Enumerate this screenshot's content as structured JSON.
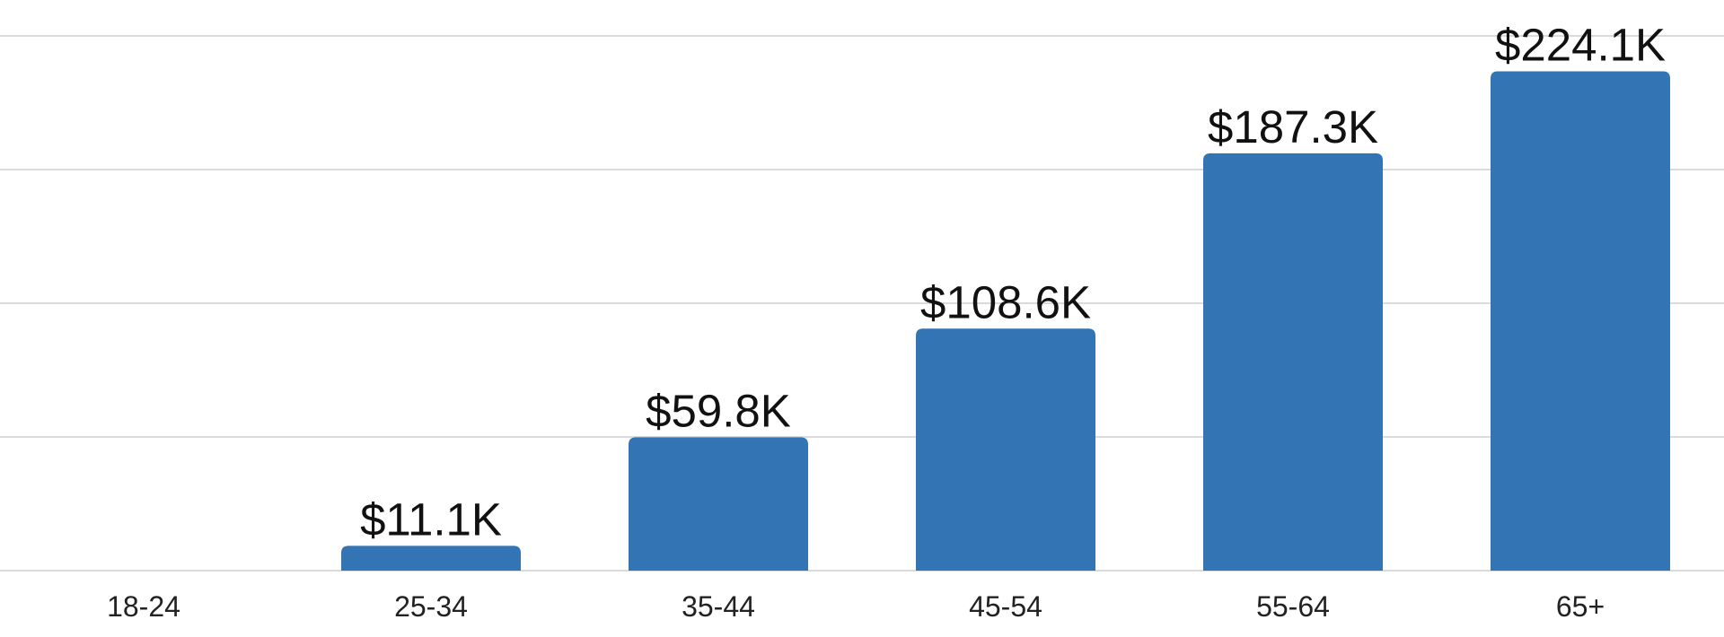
{
  "chart_data": {
    "type": "bar",
    "categories": [
      "18-24",
      "25-34",
      "35-44",
      "45-54",
      "55-64",
      "65+"
    ],
    "values": [
      0,
      11100,
      59800,
      108600,
      187300,
      224100
    ],
    "value_labels": [
      "",
      "$11.1K",
      "$59.8K",
      "$108.6K",
      "$187.3K",
      "$224.1K"
    ],
    "title": "",
    "xlabel": "",
    "ylabel": "",
    "ylim": [
      0,
      240000
    ],
    "y_gridlines": [
      0,
      60000,
      120000,
      180000,
      240000
    ],
    "grid": true,
    "legend": "none",
    "bar_color": "#3374b4",
    "grid_color": "#c4c4c4"
  }
}
